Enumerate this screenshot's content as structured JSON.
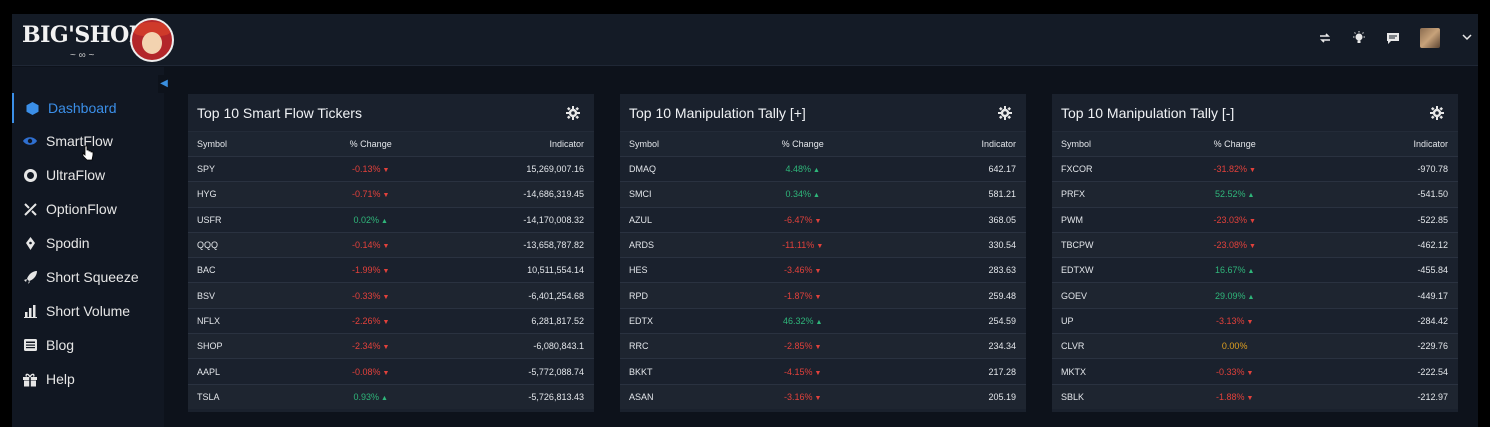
{
  "app": {
    "logo_text": "BIG'SHORT",
    "logo_flourish": "~ ∞ ~"
  },
  "colors": {
    "accent": "#3b8fe8",
    "positive": "#2fb67a",
    "negative": "#e2413b",
    "neutral": "#e0a020",
    "panel_bg": "#1a212d",
    "page_bg": "#0d121b"
  },
  "topbar_icons": [
    "transfer-icon",
    "lightbulb-icon",
    "chat-icon",
    "user-avatar",
    "chevron-down-icon"
  ],
  "sidebar": {
    "items": [
      {
        "label": "Dashboard",
        "icon": "cube-icon",
        "active": true
      },
      {
        "label": "SmartFlow",
        "icon": "eye-icon",
        "active": false
      },
      {
        "label": "UltraFlow",
        "icon": "ring-icon",
        "active": false
      },
      {
        "label": "OptionFlow",
        "icon": "split-arrows-icon",
        "active": false
      },
      {
        "label": "Spodin",
        "icon": "pen-nib-icon",
        "active": false
      },
      {
        "label": "Short Squeeze",
        "icon": "rocket-icon",
        "active": false
      },
      {
        "label": "Short Volume",
        "icon": "bar-chart-icon",
        "active": false
      },
      {
        "label": "Blog",
        "icon": "newspaper-icon",
        "active": false
      },
      {
        "label": "Help",
        "icon": "gift-icon",
        "active": false
      }
    ]
  },
  "panels": [
    {
      "title": "Top 10 Smart Flow Tickers",
      "columns": [
        "Symbol",
        "% Change",
        "Indicator"
      ],
      "rows": [
        {
          "symbol": "SPY",
          "change": "-0.13%",
          "dir": "down",
          "indicator": "15,269,007.16"
        },
        {
          "symbol": "HYG",
          "change": "-0.71%",
          "dir": "down",
          "indicator": "-14,686,319.45"
        },
        {
          "symbol": "USFR",
          "change": "0.02%",
          "dir": "up",
          "indicator": "-14,170,008.32"
        },
        {
          "symbol": "QQQ",
          "change": "-0.14%",
          "dir": "down",
          "indicator": "-13,658,787.82"
        },
        {
          "symbol": "BAC",
          "change": "-1.99%",
          "dir": "down",
          "indicator": "10,511,554.14"
        },
        {
          "symbol": "BSV",
          "change": "-0.33%",
          "dir": "down",
          "indicator": "-6,401,254.68"
        },
        {
          "symbol": "NFLX",
          "change": "-2.26%",
          "dir": "down",
          "indicator": "6,281,817.52"
        },
        {
          "symbol": "SHOP",
          "change": "-2.34%",
          "dir": "down",
          "indicator": "-6,080,843.1"
        },
        {
          "symbol": "AAPL",
          "change": "-0.08%",
          "dir": "down",
          "indicator": "-5,772,088.74"
        },
        {
          "symbol": "TSLA",
          "change": "0.93%",
          "dir": "up",
          "indicator": "-5,726,813.43"
        }
      ]
    },
    {
      "title": "Top 10 Manipulation Tally [+]",
      "columns": [
        "Symbol",
        "% Change",
        "Indicator"
      ],
      "rows": [
        {
          "symbol": "DMAQ",
          "change": "4.48%",
          "dir": "up",
          "indicator": "642.17"
        },
        {
          "symbol": "SMCI",
          "change": "0.34%",
          "dir": "up",
          "indicator": "581.21"
        },
        {
          "symbol": "AZUL",
          "change": "-6.47%",
          "dir": "down",
          "indicator": "368.05"
        },
        {
          "symbol": "ARDS",
          "change": "-11.11%",
          "dir": "down",
          "indicator": "330.54"
        },
        {
          "symbol": "HES",
          "change": "-3.46%",
          "dir": "down",
          "indicator": "283.63"
        },
        {
          "symbol": "RPD",
          "change": "-1.87%",
          "dir": "down",
          "indicator": "259.48"
        },
        {
          "symbol": "EDTX",
          "change": "46.32%",
          "dir": "up",
          "indicator": "254.59"
        },
        {
          "symbol": "RRC",
          "change": "-2.85%",
          "dir": "down",
          "indicator": "234.34"
        },
        {
          "symbol": "BKKT",
          "change": "-4.15%",
          "dir": "down",
          "indicator": "217.28"
        },
        {
          "symbol": "ASAN",
          "change": "-3.16%",
          "dir": "down",
          "indicator": "205.19"
        }
      ]
    },
    {
      "title": "Top 10 Manipulation Tally [-]",
      "columns": [
        "Symbol",
        "% Change",
        "Indicator"
      ],
      "rows": [
        {
          "symbol": "FXCOR",
          "change": "-31.82%",
          "dir": "down",
          "indicator": "-970.78"
        },
        {
          "symbol": "PRFX",
          "change": "52.52%",
          "dir": "up",
          "indicator": "-541.50"
        },
        {
          "symbol": "PWM",
          "change": "-23.03%",
          "dir": "down",
          "indicator": "-522.85"
        },
        {
          "symbol": "TBCPW",
          "change": "-23.08%",
          "dir": "down",
          "indicator": "-462.12"
        },
        {
          "symbol": "EDTXW",
          "change": "16.67%",
          "dir": "up",
          "indicator": "-455.84"
        },
        {
          "symbol": "GOEV",
          "change": "29.09%",
          "dir": "up",
          "indicator": "-449.17"
        },
        {
          "symbol": "UP",
          "change": "-3.13%",
          "dir": "down",
          "indicator": "-284.42"
        },
        {
          "symbol": "CLVR",
          "change": "0.00%",
          "dir": "none",
          "indicator": "-229.76"
        },
        {
          "symbol": "MKTX",
          "change": "-0.33%",
          "dir": "down",
          "indicator": "-222.54"
        },
        {
          "symbol": "SBLK",
          "change": "-1.88%",
          "dir": "down",
          "indicator": "-212.97"
        }
      ]
    }
  ]
}
